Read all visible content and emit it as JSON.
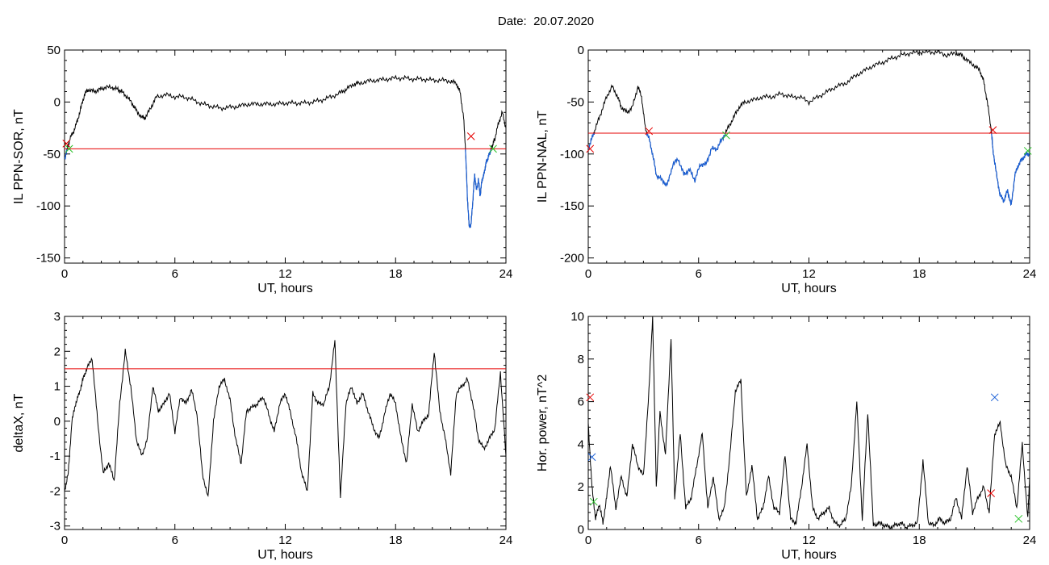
{
  "header": {
    "date_label": "Date:",
    "date_value": "20.07.2020"
  },
  "colors": {
    "axes": "#000000",
    "series": "#000000",
    "threshold": "#e60000",
    "below": "#1a5fd6",
    "marker_red": "#e60000",
    "marker_green": "#29c229",
    "marker_blue": "#1a5fd6"
  },
  "chart_data": [
    {
      "id": "il-ppn-sor",
      "type": "line",
      "title": "",
      "xlabel": "UT, hours",
      "ylabel": "IL PPN-SOR, nT",
      "xlim": [
        0,
        24
      ],
      "ylim": [
        -155,
        50
      ],
      "xticks": [
        0,
        6,
        12,
        18,
        24
      ],
      "yticks": [
        -150,
        -100,
        -50,
        0,
        50
      ],
      "threshold": -45,
      "highlight_below_threshold": true,
      "series": [
        {
          "x": [
            0,
            0.15,
            0.3,
            0.5,
            0.7,
            0.9,
            1.1,
            1.3,
            1.6,
            1.9,
            2.2,
            2.6,
            2.9,
            3.1,
            3.4,
            3.7,
            3.9,
            4.2,
            4.4,
            4.7,
            5.0,
            5.5,
            6.0,
            6.5,
            7.0,
            7.5,
            8.0,
            8.5,
            9.0,
            9.5,
            10.0,
            10.5,
            11.0,
            11.5,
            12.0,
            12.5,
            13.0,
            13.5,
            14.0,
            14.5,
            15.0,
            15.3,
            15.7,
            16.0,
            16.5,
            17.0,
            17.5,
            18.0,
            18.5,
            19.0,
            19.5,
            20.0,
            20.5,
            21.0,
            21.3,
            21.5,
            21.7,
            21.8,
            21.9,
            22.0,
            22.1,
            22.2,
            22.3,
            22.4,
            22.5,
            22.6,
            22.7,
            22.8,
            22.9,
            23.0,
            23.1,
            23.2,
            23.3,
            23.4,
            23.6,
            23.8,
            24.0
          ],
          "y": [
            -55,
            -45,
            -35,
            -28,
            -18,
            -5,
            8,
            12,
            10,
            12,
            14,
            14,
            12,
            10,
            5,
            -2,
            -8,
            -15,
            -15,
            -5,
            5,
            7,
            5,
            5,
            2,
            -2,
            -4,
            -6,
            -5,
            -4,
            -2,
            -2,
            -2,
            -2,
            -1,
            -1,
            -1,
            0,
            2,
            5,
            9,
            12,
            17,
            18,
            20,
            21,
            22,
            23,
            23,
            22,
            22,
            21,
            21,
            20,
            18,
            10,
            -15,
            -45,
            -90,
            -120,
            -118,
            -95,
            -70,
            -85,
            -75,
            -90,
            -75,
            -70,
            -60,
            -55,
            -50,
            -45,
            -40,
            -35,
            -20,
            -10,
            -25
          ]
        }
      ],
      "markers": [
        {
          "x": 0.1,
          "y": -40,
          "color": "red"
        },
        {
          "x": 0.25,
          "y": -45,
          "color": "green"
        },
        {
          "x": 22.1,
          "y": -33,
          "color": "red"
        },
        {
          "x": 23.3,
          "y": -45,
          "color": "green"
        }
      ]
    },
    {
      "id": "il-ppn-nal",
      "type": "line",
      "title": "",
      "xlabel": "UT, hours",
      "ylabel": "IL PPN-NAL, nT",
      "xlim": [
        0,
        24
      ],
      "ylim": [
        -205,
        0
      ],
      "xticks": [
        0,
        6,
        12,
        18,
        24
      ],
      "yticks": [
        -200,
        -150,
        -100,
        -50,
        0
      ],
      "threshold": -80,
      "highlight_below_threshold": true,
      "series": [
        {
          "x": [
            0,
            0.2,
            0.4,
            0.7,
            1.0,
            1.3,
            1.6,
            1.8,
            2.1,
            2.4,
            2.7,
            2.9,
            3.1,
            3.3,
            3.5,
            3.7,
            4.0,
            4.3,
            4.6,
            4.9,
            5.2,
            5.5,
            5.8,
            6.1,
            6.4,
            6.7,
            7.0,
            7.3,
            7.6,
            7.9,
            8.2,
            8.5,
            9.0,
            9.5,
            10.0,
            10.5,
            11.0,
            11.5,
            12.0,
            12.5,
            13.0,
            13.5,
            14.0,
            14.5,
            15.0,
            15.5,
            16.0,
            16.5,
            17.0,
            17.5,
            18.0,
            18.5,
            19.0,
            19.5,
            20.0,
            20.3,
            20.6,
            21.0,
            21.3,
            21.5,
            21.7,
            21.9,
            22.0,
            22.2,
            22.4,
            22.6,
            22.8,
            23.0,
            23.2,
            23.4,
            23.6,
            23.8,
            24.0
          ],
          "y": [
            -95,
            -85,
            -75,
            -60,
            -45,
            -35,
            -45,
            -55,
            -60,
            -55,
            -35,
            -45,
            -75,
            -85,
            -100,
            -120,
            -125,
            -130,
            -110,
            -105,
            -120,
            -115,
            -125,
            -110,
            -110,
            -95,
            -95,
            -85,
            -75,
            -65,
            -55,
            -50,
            -48,
            -45,
            -45,
            -42,
            -45,
            -45,
            -50,
            -45,
            -40,
            -35,
            -32,
            -25,
            -20,
            -15,
            -12,
            -8,
            -5,
            -3,
            -2,
            -2,
            -2,
            -5,
            -3,
            -5,
            -10,
            -15,
            -20,
            -30,
            -50,
            -75,
            -95,
            -120,
            -140,
            -145,
            -135,
            -150,
            -120,
            -110,
            -105,
            -100,
            -100
          ]
        }
      ],
      "markers": [
        {
          "x": 0.1,
          "y": -95,
          "color": "red"
        },
        {
          "x": 3.3,
          "y": -78,
          "color": "red"
        },
        {
          "x": 7.5,
          "y": -82,
          "color": "green"
        },
        {
          "x": 22.0,
          "y": -77,
          "color": "red"
        },
        {
          "x": 23.9,
          "y": -97,
          "color": "green"
        }
      ]
    },
    {
      "id": "deltax",
      "type": "line",
      "title": "",
      "xlabel": "UT, hours",
      "ylabel": "deltaX, nT",
      "xlim": [
        0,
        24
      ],
      "ylim": [
        -3.1,
        3
      ],
      "xticks": [
        0,
        6,
        12,
        18,
        24
      ],
      "yticks": [
        -3,
        -2,
        -1,
        0,
        1,
        2,
        3
      ],
      "threshold": 1.5,
      "highlight_below_threshold": false,
      "series": [
        {
          "x": [
            0,
            0.2,
            0.4,
            0.6,
            0.8,
            1.0,
            1.2,
            1.5,
            1.8,
            2.1,
            2.4,
            2.7,
            3.0,
            3.3,
            3.6,
            3.9,
            4.2,
            4.5,
            4.8,
            5.1,
            5.4,
            5.7,
            6.0,
            6.3,
            6.6,
            6.9,
            7.2,
            7.5,
            7.8,
            8.1,
            8.4,
            8.7,
            9.0,
            9.3,
            9.6,
            9.9,
            10.2,
            10.5,
            10.8,
            11.1,
            11.4,
            11.7,
            12.0,
            12.3,
            12.6,
            12.9,
            13.2,
            13.5,
            13.8,
            14.1,
            14.4,
            14.7,
            15.0,
            15.3,
            15.6,
            15.9,
            16.2,
            16.5,
            16.8,
            17.1,
            17.4,
            17.7,
            18.0,
            18.3,
            18.6,
            18.9,
            19.2,
            19.5,
            19.8,
            20.1,
            20.4,
            20.7,
            21.0,
            21.3,
            21.6,
            21.9,
            22.2,
            22.5,
            22.8,
            23.1,
            23.4,
            23.7,
            24.0
          ],
          "y": [
            -2.0,
            -1.5,
            0.0,
            0.5,
            0.8,
            1.2,
            1.5,
            1.8,
            0.0,
            -1.5,
            -1.2,
            -1.7,
            0.5,
            2.0,
            1.0,
            -0.5,
            -1.0,
            -0.5,
            1.0,
            0.3,
            0.5,
            0.8,
            -0.3,
            0.7,
            0.5,
            0.9,
            0.2,
            -1.5,
            -2.2,
            0.0,
            1.0,
            1.2,
            0.6,
            -0.5,
            -1.2,
            0.3,
            0.4,
            0.5,
            0.7,
            0.2,
            -0.3,
            0.5,
            0.8,
            0.2,
            -0.5,
            -1.5,
            -2.0,
            0.8,
            0.5,
            0.5,
            1.0,
            2.3,
            -2.2,
            0.5,
            1.0,
            0.5,
            0.8,
            0.3,
            -0.2,
            -0.5,
            0.2,
            0.8,
            0.5,
            -0.5,
            -1.2,
            0.5,
            -0.3,
            0.0,
            0.2,
            2.0,
            0.3,
            -0.5,
            -1.5,
            0.8,
            1.0,
            1.2,
            0.5,
            -0.5,
            -0.8,
            -0.5,
            -0.2,
            1.4,
            -1.0
          ]
        }
      ],
      "markers": []
    },
    {
      "id": "hor-power",
      "type": "line",
      "title": "",
      "xlabel": "UT, hours",
      "ylabel": "Hor. power, nT^2",
      "xlim": [
        0,
        24
      ],
      "ylim": [
        0,
        10
      ],
      "xticks": [
        0,
        6,
        12,
        18,
        24
      ],
      "yticks": [
        0,
        2,
        4,
        6,
        8,
        10
      ],
      "threshold": null,
      "highlight_below_threshold": false,
      "series": [
        {
          "x": [
            0,
            0.2,
            0.4,
            0.6,
            0.8,
            1.0,
            1.2,
            1.5,
            1.8,
            2.1,
            2.4,
            2.7,
            3.0,
            3.3,
            3.5,
            3.7,
            3.9,
            4.2,
            4.5,
            4.7,
            5.0,
            5.3,
            5.6,
            5.9,
            6.2,
            6.5,
            6.8,
            7.1,
            7.4,
            7.7,
            8.0,
            8.3,
            8.6,
            8.9,
            9.2,
            9.5,
            9.8,
            10.1,
            10.4,
            10.7,
            11.0,
            11.3,
            11.6,
            11.9,
            12.2,
            12.5,
            12.8,
            13.1,
            13.4,
            13.7,
            14.0,
            14.3,
            14.6,
            14.9,
            15.2,
            15.5,
            15.8,
            16.1,
            16.4,
            16.7,
            17.0,
            17.3,
            17.6,
            17.9,
            18.2,
            18.5,
            18.8,
            19.1,
            19.4,
            19.7,
            20.0,
            20.3,
            20.6,
            20.9,
            21.2,
            21.5,
            21.8,
            22.1,
            22.4,
            22.7,
            23.0,
            23.3,
            23.6,
            23.9,
            24.0
          ],
          "y": [
            5.0,
            2.0,
            0.5,
            1.2,
            0.3,
            1.5,
            3.0,
            1.0,
            2.5,
            1.5,
            4.0,
            3.0,
            2.5,
            6.5,
            10.0,
            2.0,
            5.5,
            3.5,
            9.0,
            1.5,
            4.5,
            1.0,
            1.5,
            3.0,
            4.5,
            1.0,
            2.5,
            0.5,
            1.0,
            3.5,
            6.5,
            7.0,
            1.5,
            3.0,
            0.5,
            1.0,
            2.5,
            1.0,
            0.8,
            3.5,
            0.5,
            0.3,
            2.0,
            4.0,
            1.0,
            0.5,
            0.8,
            1.0,
            0.3,
            0.2,
            0.5,
            2.0,
            6.0,
            0.5,
            5.5,
            0.2,
            0.3,
            0.2,
            0.1,
            0.2,
            0.3,
            0.1,
            0.2,
            0.3,
            3.2,
            0.3,
            0.2,
            0.5,
            0.3,
            0.5,
            1.5,
            0.5,
            3.0,
            0.8,
            1.5,
            2.0,
            0.8,
            4.5,
            5.0,
            3.0,
            2.5,
            1.0,
            4.0,
            0.5,
            2.5
          ]
        }
      ],
      "markers": [
        {
          "x": 0.1,
          "y": 6.2,
          "color": "red"
        },
        {
          "x": 0.2,
          "y": 3.4,
          "color": "blue"
        },
        {
          "x": 0.3,
          "y": 1.3,
          "color": "green"
        },
        {
          "x": 22.1,
          "y": 6.2,
          "color": "blue"
        },
        {
          "x": 21.9,
          "y": 1.7,
          "color": "red"
        },
        {
          "x": 23.4,
          "y": 0.5,
          "color": "green"
        }
      ]
    }
  ]
}
